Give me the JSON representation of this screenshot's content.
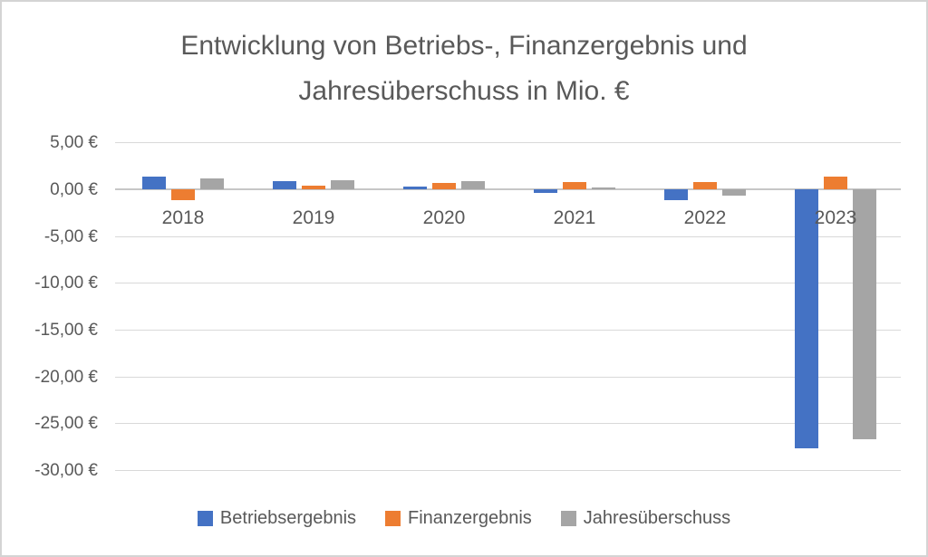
{
  "chart_data": {
    "type": "bar",
    "title": "Entwicklung von Betriebs-, Finanzergebnis und Jahresüberschuss in Mio. €",
    "title_lines": [
      "Entwicklung von Betriebs-, Finanzergebnis und",
      "Jahresüberschuss in Mio. €"
    ],
    "categories": [
      "2018",
      "2019",
      "2020",
      "2021",
      "2022",
      "2023"
    ],
    "series": [
      {
        "name": "Betriebsergebnis",
        "color": "#4472C4",
        "values": [
          1.4,
          0.9,
          0.3,
          -0.4,
          -1.2,
          -27.7
        ]
      },
      {
        "name": "Finanzergebnis",
        "color": "#ED7D31",
        "values": [
          -1.2,
          0.4,
          0.7,
          0.8,
          0.8,
          1.4
        ]
      },
      {
        "name": "Jahresüberschuss",
        "color": "#A5A5A5",
        "values": [
          1.2,
          1.0,
          0.9,
          0.2,
          -0.7,
          -26.7
        ]
      }
    ],
    "y_axis": {
      "min": -30,
      "max": 5,
      "step": 5,
      "unit": "Mio. €",
      "ticks": [
        {
          "value": 5,
          "label": "5,00 €"
        },
        {
          "value": 0,
          "label": "0,00 €"
        },
        {
          "value": -5,
          "label": "-5,00 €"
        },
        {
          "value": -10,
          "label": "-10,00 €"
        },
        {
          "value": -15,
          "label": "-15,00 €"
        },
        {
          "value": -20,
          "label": "-20,00 €"
        },
        {
          "value": -25,
          "label": "-25,00 €"
        },
        {
          "value": -30,
          "label": "-30,00 €"
        }
      ]
    },
    "grid": true,
    "legend_position": "bottom"
  },
  "styles": {
    "text_color": "#595959",
    "gridline_color": "#D9D9D9",
    "zero_line_color": "#C6C6C6",
    "background": "#FFFFFF",
    "border_color": "#D4D4D4"
  }
}
